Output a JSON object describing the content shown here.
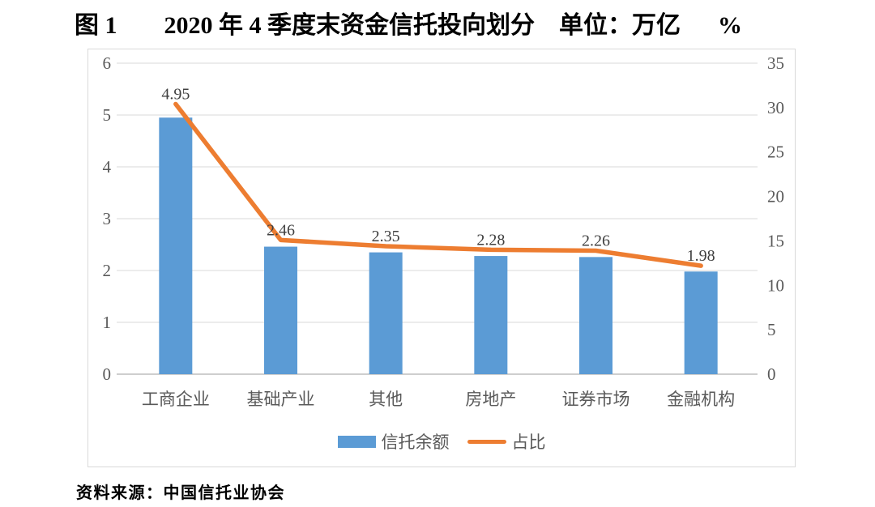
{
  "title": {
    "figure_label": "图 1",
    "text": "2020 年 4 季度末资金信托投向划分",
    "unit_label": "单位：万亿",
    "percent_label": "%"
  },
  "chart_data": {
    "type": "combo-bar-line",
    "categories": [
      "工商企业",
      "基础产业",
      "其他",
      "房地产",
      "证券市场",
      "金融机构"
    ],
    "series": [
      {
        "name": "信托余额",
        "type": "bar",
        "axis": "left",
        "color": "#5B9BD5",
        "values": [
          4.95,
          2.46,
          2.35,
          2.28,
          2.26,
          1.98
        ],
        "data_labels": [
          "4.95",
          "2.46",
          "2.35",
          "2.28",
          "2.26",
          "1.98"
        ]
      },
      {
        "name": "占比",
        "type": "line",
        "axis": "right",
        "color": "#ED7D31",
        "values": [
          30.4,
          15.1,
          14.4,
          14.0,
          13.9,
          12.2
        ]
      }
    ],
    "left_axis": {
      "min": 0,
      "max": 6,
      "step": 1,
      "tick_labels": [
        "0",
        "1",
        "2",
        "3",
        "4",
        "5",
        "6"
      ]
    },
    "right_axis": {
      "min": 0,
      "max": 35,
      "step": 5,
      "tick_labels": [
        "0",
        "5",
        "10",
        "15",
        "20",
        "25",
        "30",
        "35"
      ]
    },
    "grid": true,
    "legend_position": "bottom"
  },
  "legend": {
    "items": [
      {
        "label": "信托余额",
        "swatch": "bar",
        "color": "#5B9BD5"
      },
      {
        "label": "占比",
        "swatch": "line",
        "color": "#ED7D31"
      }
    ]
  },
  "source_note": "资料来源：中国信托业协会",
  "colors": {
    "bar": "#5B9BD5",
    "line": "#ED7D31",
    "gridline": "#D9D9D9",
    "axis_line": "#BDBDBD",
    "tick_text": "#595959",
    "data_label_text": "#404040",
    "frame_border": "#D9D9D9",
    "background": "#FFFFFF"
  }
}
